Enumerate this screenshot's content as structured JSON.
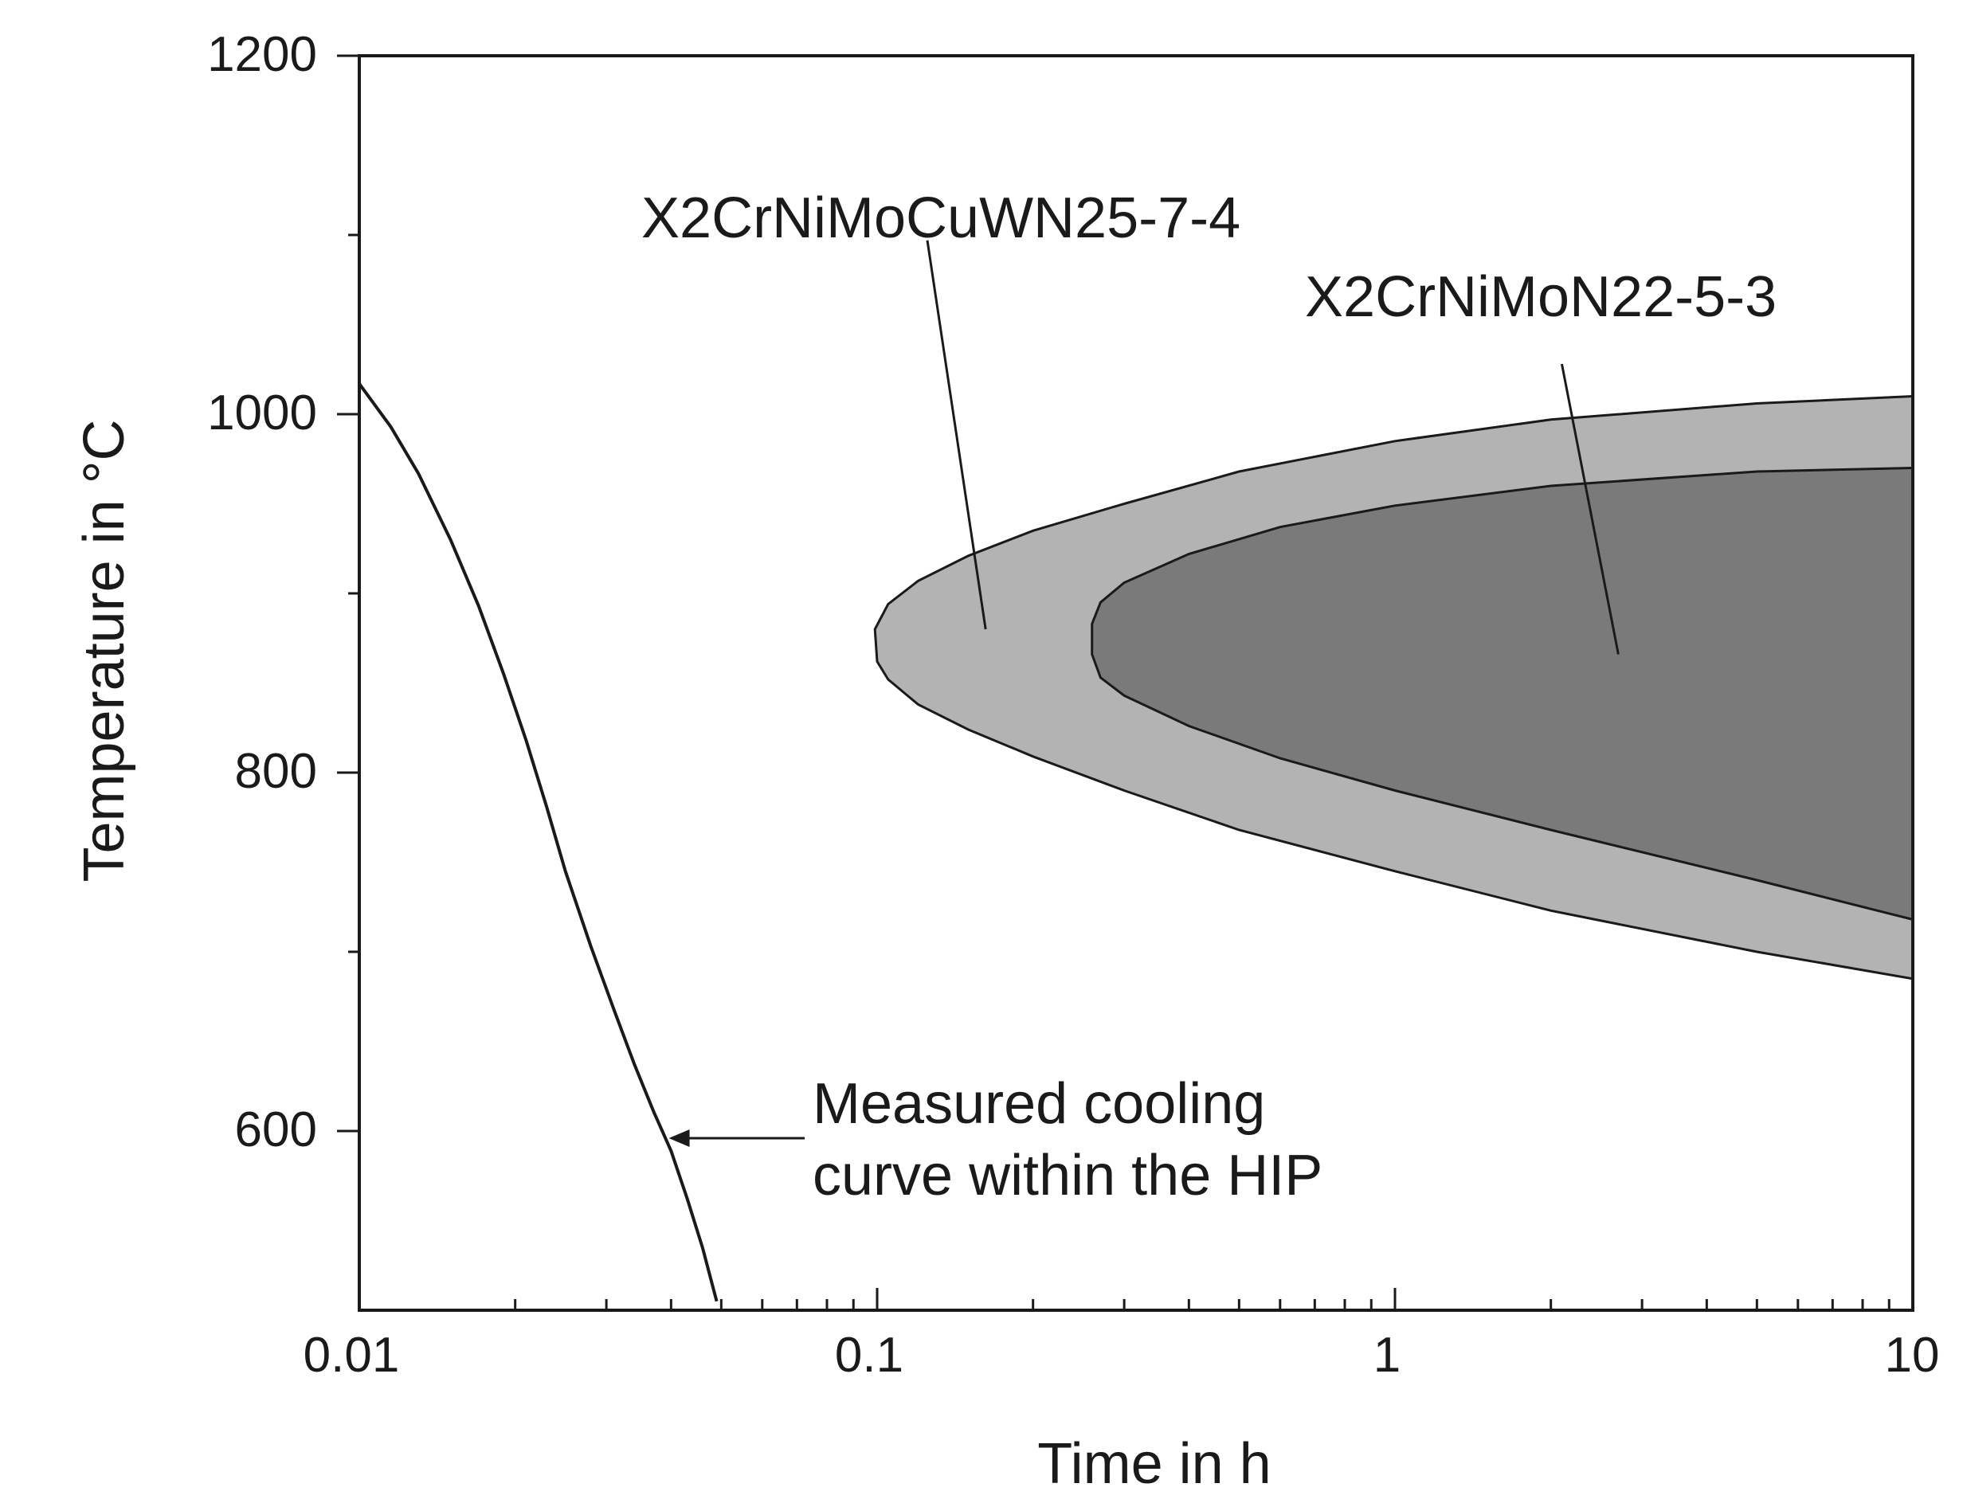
{
  "chart_data": {
    "type": "line",
    "title": "",
    "xlabel": "Time in h",
    "ylabel": "Temperature in °C",
    "xscale": "log",
    "xlim": [
      0.01,
      10
    ],
    "ylim": [
      500,
      1200
    ],
    "x_tick_labels": [
      "0.01",
      "0.1",
      "1",
      "10"
    ],
    "y_tick_labels": [
      "600",
      "800",
      "1000",
      "1200"
    ],
    "grid": false,
    "series": [
      {
        "name": "Measured cooling curve within the HIP",
        "kind": "curve",
        "color": "#1a1a1a",
        "x": [
          0.01,
          0.0115,
          0.013,
          0.015,
          0.017,
          0.019,
          0.021,
          0.023,
          0.025,
          0.028,
          0.031,
          0.034,
          0.037,
          0.04,
          0.043,
          0.046,
          0.049
        ],
        "y": [
          1017,
          993,
          967,
          930,
          893,
          855,
          818,
          781,
          745,
          703,
          668,
          637,
          611,
          589,
          562,
          535,
          505
        ]
      },
      {
        "name": "X2CrNiMoCuWN25-7-4",
        "kind": "region",
        "color": "#b3b3b3",
        "x": [
          10,
          5,
          2,
          1,
          0.5,
          0.3,
          0.2,
          0.15,
          0.12,
          0.105,
          0.099,
          0.1,
          0.105,
          0.12,
          0.15,
          0.2,
          0.3,
          0.5,
          1,
          2,
          5,
          10
        ],
        "y": [
          1010,
          1006,
          997,
          985,
          968,
          950,
          935,
          921,
          907,
          894,
          880,
          862,
          852,
          838,
          824,
          809,
          790,
          768,
          745,
          723,
          700,
          685
        ]
      },
      {
        "name": "X2CrNiMoN22-5-3",
        "kind": "region",
        "color": "#7a7a7a",
        "x": [
          10,
          5,
          2,
          1,
          0.6,
          0.4,
          0.3,
          0.27,
          0.26,
          0.26,
          0.27,
          0.3,
          0.4,
          0.6,
          1,
          2,
          5,
          10
        ],
        "y": [
          970,
          968,
          960,
          949,
          937,
          922,
          906,
          895,
          883,
          866,
          853,
          843,
          826,
          808,
          790,
          768,
          740,
          718
        ]
      }
    ],
    "annotations": [
      {
        "text": "X2CrNiMoCuWN25-7-4",
        "points_to": "X2CrNiMoCuWN25-7-4"
      },
      {
        "text": "X2CrNiMoN22-5-3",
        "points_to": "X2CrNiMoN22-5-3"
      },
      {
        "lines": [
          "Measured cooling",
          "curve within the HIP"
        ],
        "points_to": "Measured cooling curve within the HIP"
      }
    ]
  }
}
